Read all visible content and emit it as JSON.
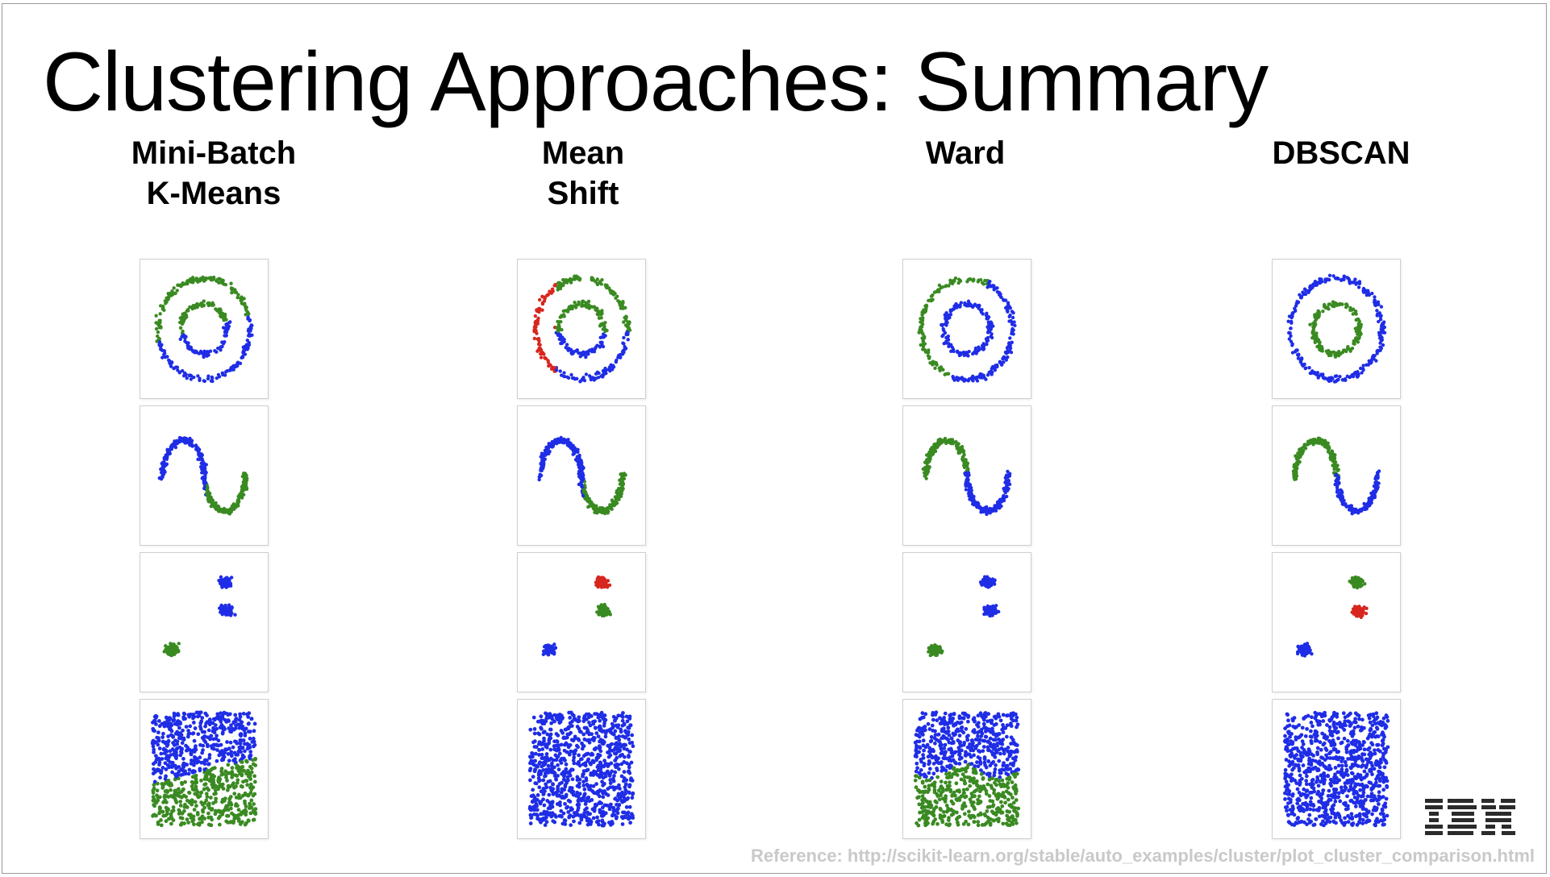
{
  "slide": {
    "title": "Clustering Approaches: Summary",
    "reference": "Reference: http://scikit-learn.org/stable/auto_examples/cluster/plot_cluster_comparison.html",
    "logo_text": "IBM"
  },
  "colors": {
    "blue": "#1f2de6",
    "green": "#3a8a22",
    "red": "#d8261e"
  },
  "methods": [
    {
      "lines": [
        "Mini-Batch",
        "K-Means"
      ]
    },
    {
      "lines": [
        "Mean",
        "Shift"
      ]
    },
    {
      "lines": [
        "Ward"
      ]
    },
    {
      "lines": [
        "DBSCAN"
      ]
    }
  ],
  "datasets": [
    "noisy-circles",
    "noisy-moons",
    "blobs",
    "uniform-square"
  ],
  "panels": {
    "mini-batch-kmeans": {
      "noisy-circles": {
        "outer": "split-top-green-bottom-blue",
        "inner": "split-top-green-bottom-blue"
      },
      "noisy-moons": {
        "split": "by-vertical-line"
      },
      "blobs": {
        "top": "blue",
        "mid": "blue",
        "left": "green"
      },
      "uniform-square": {
        "split": "diagonal",
        "top": "blue",
        "bottom": "green"
      }
    },
    "mean-shift": {
      "noisy-circles": {
        "left": "red",
        "rest-top": "green",
        "rest-bottom": "blue"
      },
      "noisy-moons": {
        "split": "by-vertical-line"
      },
      "blobs": {
        "top": "red",
        "mid": "green",
        "left": "blue"
      },
      "uniform-square": {
        "all": "blue"
      }
    },
    "ward": {
      "noisy-circles": {
        "outer": "mixed",
        "inner": "blue"
      },
      "noisy-moons": {
        "upper": "green",
        "lower": "blue"
      },
      "blobs": {
        "top": "blue",
        "mid": "blue",
        "left": "green"
      },
      "uniform-square": {
        "split": "wavy",
        "top": "blue",
        "bottom": "green"
      }
    },
    "dbscan": {
      "noisy-circles": {
        "outer": "blue",
        "inner": "green"
      },
      "noisy-moons": {
        "upper": "green",
        "lower": "blue"
      },
      "blobs": {
        "top": "green",
        "mid": "red",
        "left": "blue"
      },
      "uniform-square": {
        "all": "blue"
      }
    }
  }
}
